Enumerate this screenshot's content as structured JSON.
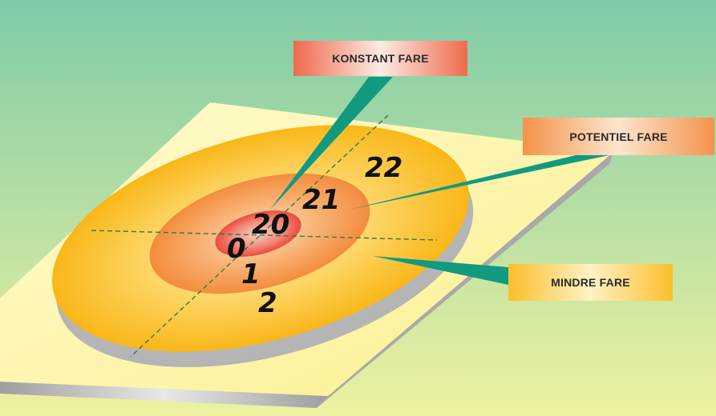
{
  "labels": {
    "konstant": "KONSTANT FARE",
    "potentiel": "POTENTIEL FARE",
    "mindre": "MINDRE FARE"
  },
  "zones": {
    "z0": "0",
    "z1": "1",
    "z2": "2",
    "z20": "20",
    "z21": "21",
    "z22": "22"
  },
  "colors": {
    "background_top": "#7fcba8",
    "background_bottom": "#eef2a0",
    "plate": "#fdf6a6",
    "outer_ring": "#fbbf2a",
    "middle_ring": "#f5924a",
    "inner_core": "#ee5a48",
    "pointer": "#129a80"
  }
}
